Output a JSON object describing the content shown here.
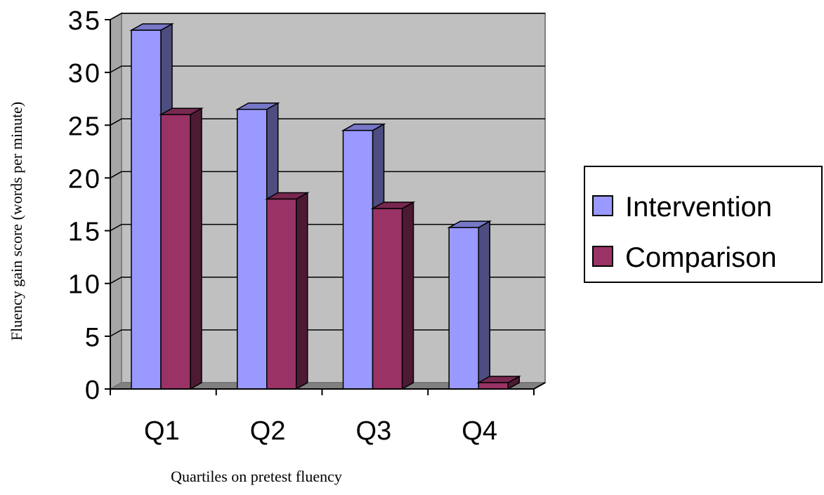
{
  "chart_data": {
    "type": "bar",
    "title": "",
    "xlabel": "Quartiles on pretest fluency",
    "ylabel": "Fluency gain score (words per minute)",
    "categories": [
      "Q1",
      "Q2",
      "Q3",
      "Q4"
    ],
    "ylim": [
      0,
      35
    ],
    "yticks": [
      0,
      5,
      10,
      15,
      20,
      25,
      30,
      35
    ],
    "grid": true,
    "legend": "right",
    "series": [
      {
        "name": "Intervention",
        "values": [
          34,
          26.5,
          24.5,
          15.3
        ],
        "color": "#9999ff"
      },
      {
        "name": "Comparison",
        "values": [
          26,
          18,
          17.1,
          0.6
        ],
        "color": "#993366"
      }
    ]
  }
}
